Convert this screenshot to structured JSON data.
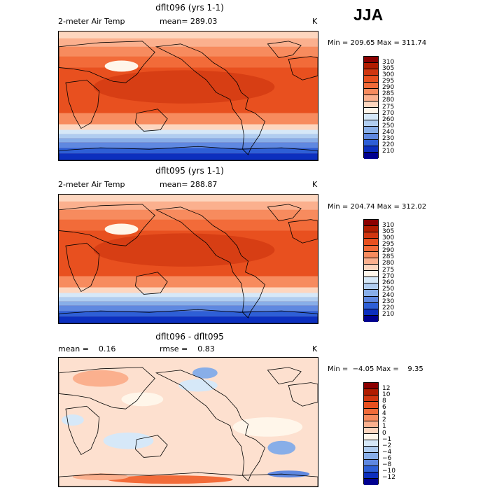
{
  "season": "JJA",
  "panels": [
    {
      "title": "dflt096 (yrs 1-1)",
      "left_label": "2-meter Air Temp",
      "mean_label": "mean= 289.03",
      "extra_label": "",
      "unit": "K",
      "minmax": "Min = 209.65 Max = 311.74",
      "colorbar": {
        "labels": [
          "310",
          "305",
          "300",
          "295",
          "290",
          "285",
          "280",
          "275",
          "270",
          "260",
          "250",
          "240",
          "230",
          "220",
          "210"
        ],
        "colors": [
          "#8b0000",
          "#b01c00",
          "#d03610",
          "#e8501f",
          "#f26b39",
          "#f78b5e",
          "#fbb08e",
          "#fdd6bf",
          "#fff6ea",
          "#d6e8f8",
          "#b0cdf0",
          "#88aee8",
          "#5f88e0",
          "#2e5fd6",
          "#0c2fbe",
          "#000090"
        ]
      }
    },
    {
      "title": "dflt095 (yrs 1-1)",
      "left_label": "2-meter Air Temp",
      "mean_label": "mean= 288.87",
      "extra_label": "",
      "unit": "K",
      "minmax": "Min = 204.74 Max = 312.02",
      "colorbar": {
        "labels": [
          "310",
          "305",
          "300",
          "295",
          "290",
          "285",
          "280",
          "275",
          "270",
          "260",
          "250",
          "240",
          "230",
          "220",
          "210"
        ],
        "colors": [
          "#8b0000",
          "#b01c00",
          "#d03610",
          "#e8501f",
          "#f26b39",
          "#f78b5e",
          "#fbb08e",
          "#fdd6bf",
          "#fff6ea",
          "#d6e8f8",
          "#b0cdf0",
          "#88aee8",
          "#5f88e0",
          "#2e5fd6",
          "#0c2fbe",
          "#000090"
        ]
      }
    },
    {
      "title": "dflt096 - dflt095",
      "left_label": "mean =    0.16",
      "mean_label": "rmse =    0.83",
      "extra_label": "",
      "unit": "K",
      "minmax": "Min =  −4.05 Max =    9.35",
      "colorbar": {
        "labels": [
          "12",
          "10",
          "8",
          "6",
          "4",
          "2",
          "1",
          "0",
          "−1",
          "−2",
          "−4",
          "−6",
          "−8",
          "−10",
          "−12"
        ],
        "colors": [
          "#8b0000",
          "#b01c00",
          "#d03610",
          "#e8501f",
          "#f26b39",
          "#f78b5e",
          "#fbb08e",
          "#fdd6bf",
          "#fff6ea",
          "#d6e8f8",
          "#b0cdf0",
          "#88aee8",
          "#5f88e0",
          "#2e5fd6",
          "#0c2fbe",
          "#000090"
        ]
      }
    }
  ]
}
